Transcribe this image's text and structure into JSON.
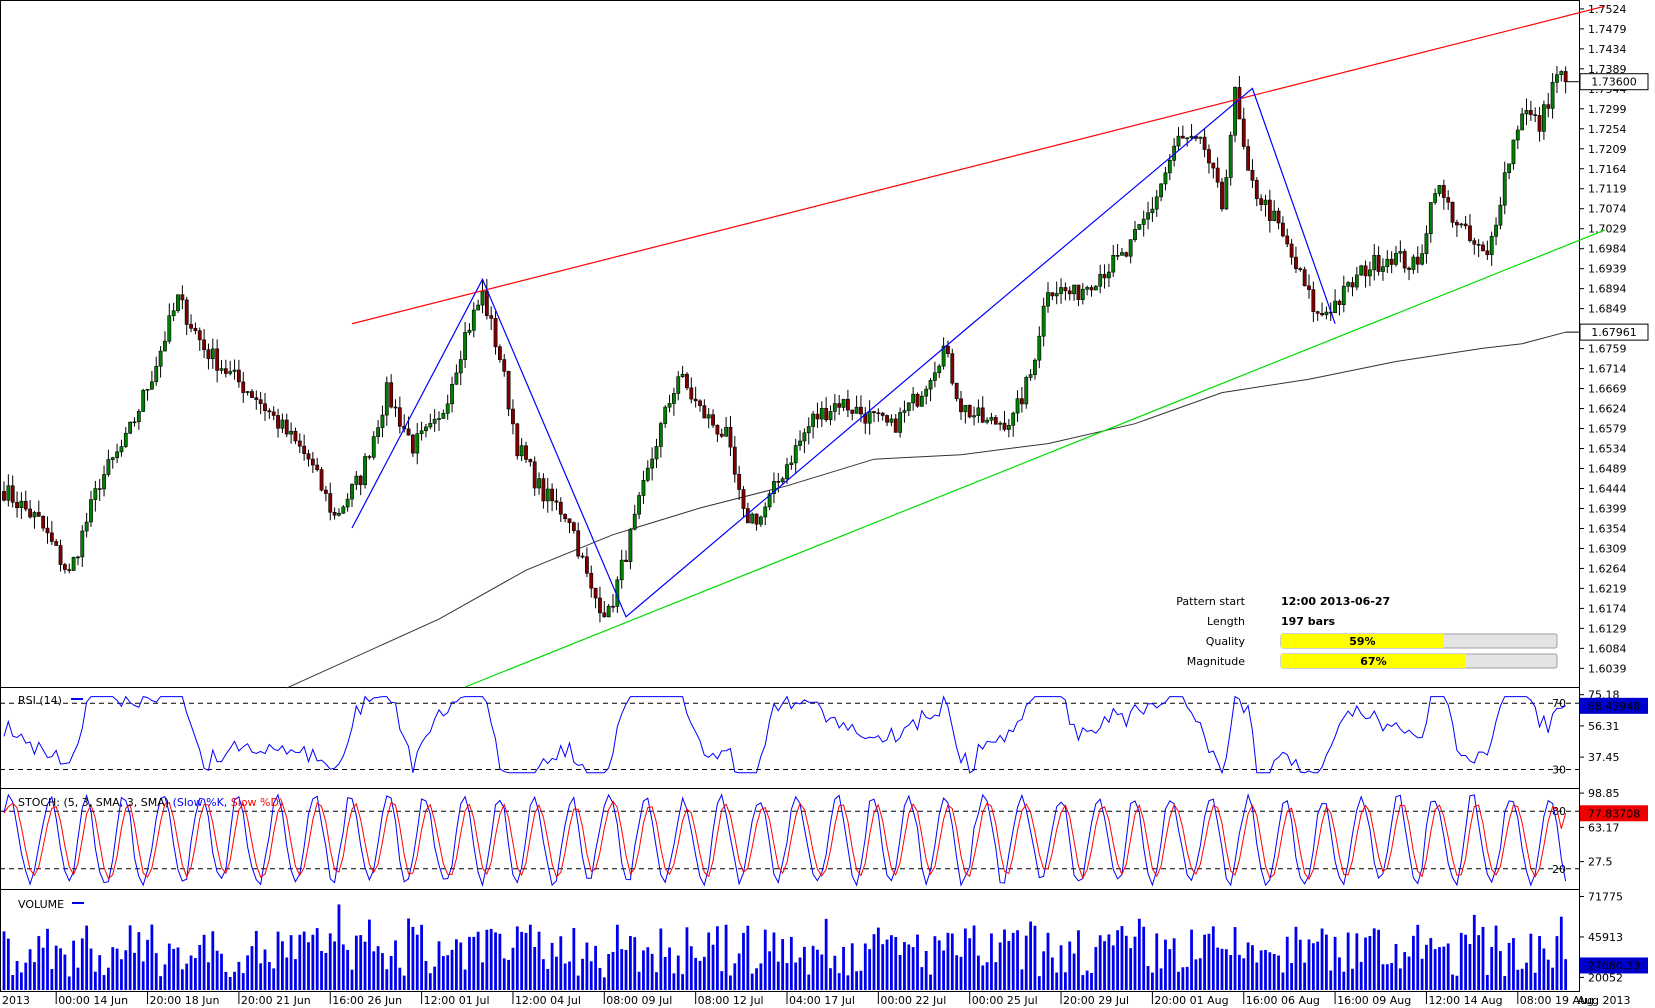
{
  "chart_data": [
    {
      "type": "candlestick",
      "price_axis": {
        "ticks": [
          "1.7524",
          "1.7479",
          "1.7434",
          "1.7389",
          "1.7344",
          "1.7299",
          "1.7254",
          "1.7209",
          "1.7164",
          "1.7119",
          "1.7074",
          "1.7029",
          "1.6984",
          "1.6939",
          "1.6894",
          "1.6849",
          "1.6804",
          "1.6759",
          "1.6714",
          "1.6669",
          "1.6624",
          "1.6579",
          "1.6534",
          "1.6489",
          "1.6444",
          "1.6399",
          "1.6354",
          "1.6309",
          "1.6264",
          "1.6219",
          "1.6174",
          "1.6129",
          "1.6084",
          "1.6039"
        ],
        "ylim": [
          1.5997,
          1.7544
        ]
      },
      "current_price": "1.73600",
      "ma_label": "1.67961",
      "anchors": [
        {
          "bar": 0,
          "close": 1.644
        },
        {
          "bar": 8,
          "close": 1.637
        },
        {
          "bar": 15,
          "close": 1.625
        },
        {
          "bar": 22,
          "close": 1.646
        },
        {
          "bar": 28,
          "close": 1.655
        },
        {
          "bar": 34,
          "close": 1.67
        },
        {
          "bar": 40,
          "close": 1.687
        },
        {
          "bar": 46,
          "close": 1.676
        },
        {
          "bar": 52,
          "close": 1.67
        },
        {
          "bar": 58,
          "close": 1.665
        },
        {
          "bar": 64,
          "close": 1.658
        },
        {
          "bar": 70,
          "close": 1.651
        },
        {
          "bar": 76,
          "close": 1.638
        },
        {
          "bar": 82,
          "close": 1.647
        },
        {
          "bar": 88,
          "close": 1.666
        },
        {
          "bar": 94,
          "close": 1.654
        },
        {
          "bar": 100,
          "close": 1.659
        },
        {
          "bar": 106,
          "close": 1.679
        },
        {
          "bar": 110,
          "close": 1.688
        },
        {
          "bar": 114,
          "close": 1.674
        },
        {
          "bar": 118,
          "close": 1.654
        },
        {
          "bar": 124,
          "close": 1.643
        },
        {
          "bar": 130,
          "close": 1.638
        },
        {
          "bar": 135,
          "close": 1.621
        },
        {
          "bar": 139,
          "close": 1.616
        },
        {
          "bar": 145,
          "close": 1.637
        },
        {
          "bar": 150,
          "close": 1.655
        },
        {
          "bar": 155,
          "close": 1.67
        },
        {
          "bar": 160,
          "close": 1.662
        },
        {
          "bar": 166,
          "close": 1.656
        },
        {
          "bar": 170,
          "close": 1.638
        },
        {
          "bar": 174,
          "close": 1.638
        },
        {
          "bar": 180,
          "close": 1.65
        },
        {
          "bar": 186,
          "close": 1.66
        },
        {
          "bar": 192,
          "close": 1.664
        },
        {
          "bar": 198,
          "close": 1.661
        },
        {
          "bar": 204,
          "close": 1.658
        },
        {
          "bar": 210,
          "close": 1.665
        },
        {
          "bar": 216,
          "close": 1.676
        },
        {
          "bar": 220,
          "close": 1.663
        },
        {
          "bar": 226,
          "close": 1.659
        },
        {
          "bar": 232,
          "close": 1.66
        },
        {
          "bar": 236,
          "close": 1.67
        },
        {
          "bar": 240,
          "close": 1.69
        },
        {
          "bar": 246,
          "close": 1.688
        },
        {
          "bar": 252,
          "close": 1.693
        },
        {
          "bar": 258,
          "close": 1.697
        },
        {
          "bar": 264,
          "close": 1.708
        },
        {
          "bar": 270,
          "close": 1.723
        },
        {
          "bar": 276,
          "close": 1.721
        },
        {
          "bar": 280,
          "close": 1.708
        },
        {
          "bar": 283,
          "close": 1.733
        },
        {
          "bar": 286,
          "close": 1.714
        },
        {
          "bar": 292,
          "close": 1.705
        },
        {
          "bar": 298,
          "close": 1.692
        },
        {
          "bar": 302,
          "close": 1.683
        },
        {
          "bar": 307,
          "close": 1.687
        },
        {
          "bar": 313,
          "close": 1.694
        },
        {
          "bar": 319,
          "close": 1.697
        },
        {
          "bar": 325,
          "close": 1.694
        },
        {
          "bar": 329,
          "close": 1.713
        },
        {
          "bar": 333,
          "close": 1.706
        },
        {
          "bar": 337,
          "close": 1.7
        },
        {
          "bar": 341,
          "close": 1.696
        },
        {
          "bar": 345,
          "close": 1.715
        },
        {
          "bar": 349,
          "close": 1.73
        },
        {
          "bar": 353,
          "close": 1.726
        },
        {
          "bar": 357,
          "close": 1.738
        },
        {
          "bar": 359,
          "close": 1.736
        }
      ],
      "moving_average": [
        {
          "bar": 65,
          "value": 1.5995
        },
        {
          "bar": 100,
          "value": 1.615
        },
        {
          "bar": 120,
          "value": 1.626
        },
        {
          "bar": 140,
          "value": 1.634
        },
        {
          "bar": 160,
          "value": 1.64
        },
        {
          "bar": 180,
          "value": 1.645
        },
        {
          "bar": 200,
          "value": 1.651
        },
        {
          "bar": 220,
          "value": 1.652
        },
        {
          "bar": 240,
          "value": 1.6545
        },
        {
          "bar": 260,
          "value": 1.659
        },
        {
          "bar": 280,
          "value": 1.666
        },
        {
          "bar": 300,
          "value": 1.669
        },
        {
          "bar": 320,
          "value": 1.673
        },
        {
          "bar": 340,
          "value": 1.676
        },
        {
          "bar": 349,
          "value": 1.677
        },
        {
          "bar": 359,
          "value": 1.6796
        }
      ],
      "resistance_line": {
        "from": {
          "bar": 80,
          "price": 1.6815
        },
        "to": {
          "bar": 368,
          "price": 1.753
        }
      },
      "support_line": {
        "from": {
          "bar": 106,
          "price": 1.5997
        },
        "to": {
          "bar": 368,
          "price": 1.7026
        }
      },
      "zigzag": [
        {
          "bar": 80,
          "price": 1.6355
        },
        {
          "bar": 110,
          "price": 1.6915
        },
        {
          "bar": 143,
          "price": 1.6155
        },
        {
          "bar": 222,
          "price": 1.681
        },
        {
          "bar": 287,
          "price": 1.7345
        },
        {
          "bar": 306,
          "price": 1.6815
        }
      ],
      "pattern_info": [
        {
          "label": "Pattern start",
          "value": "12:00 2013-06-27"
        },
        {
          "label": "Length",
          "value": "197 bars"
        }
      ],
      "quality": {
        "label": "Quality",
        "value": "59%",
        "fraction": 0.59
      },
      "magnitude": {
        "label": "Magnitude",
        "value": "67%",
        "fraction": 0.67
      },
      "colors": {
        "resistance": "#ff0000",
        "support": "#00dd00",
        "zigzag": "#0000ff",
        "ma": "#333333",
        "bull": "#008000",
        "bear": "#800000",
        "gauge": "#ffff00"
      }
    },
    {
      "type": "line",
      "title": "RSI (14)",
      "ticks": [
        "75.18",
        "56.31",
        "37.45"
      ],
      "levels": [
        "70",
        "30"
      ],
      "current": "68.43948",
      "ylim": [
        20,
        78
      ]
    },
    {
      "type": "line",
      "title": "STOCH: (5, 3, SMA, 3, SMA)",
      "series": [
        {
          "name": "Slow %K",
          "color": "#0000ff"
        },
        {
          "name": "Slow %D",
          "color": "#ff0000"
        }
      ],
      "ticks": [
        "98.85",
        "63.17",
        "27.5"
      ],
      "levels": [
        "80",
        "20"
      ],
      "current": "77.83708",
      "ylim": [
        0,
        100
      ]
    },
    {
      "type": "bar",
      "title": "VOLUME",
      "ticks": [
        "71775",
        "45913",
        "20052"
      ],
      "current": "27680.33",
      "ylim": [
        12000,
        74000
      ]
    }
  ],
  "x_axis": {
    "start_label": "2013",
    "end_label": "Aug 2013",
    "labels": [
      {
        "bar": 12,
        "text": "00:00 14 Jun"
      },
      {
        "bar": 33,
        "text": "20:00 18 Jun"
      },
      {
        "bar": 54,
        "text": "20:00 21 Jun"
      },
      {
        "bar": 75,
        "text": "16:00 26 Jun"
      },
      {
        "bar": 96,
        "text": "12:00 01 Jul"
      },
      {
        "bar": 117,
        "text": "12:00 04 Jul"
      },
      {
        "bar": 138,
        "text": "08:00 09 Jul"
      },
      {
        "bar": 159,
        "text": "08:00 12 Jul"
      },
      {
        "bar": 180,
        "text": "04:00 17 Jul"
      },
      {
        "bar": 201,
        "text": "00:00 22 Jul"
      },
      {
        "bar": 222,
        "text": "00:00 25 Jul"
      },
      {
        "bar": 243,
        "text": "20:00 29 Jul"
      },
      {
        "bar": 264,
        "text": "20:00 01 Aug"
      },
      {
        "bar": 285,
        "text": "16:00 06 Aug"
      },
      {
        "bar": 306,
        "text": "16:00 09 Aug"
      },
      {
        "bar": 327,
        "text": "12:00 14 Aug"
      },
      {
        "bar": 348,
        "text": "08:00 19 Aug"
      }
    ]
  }
}
